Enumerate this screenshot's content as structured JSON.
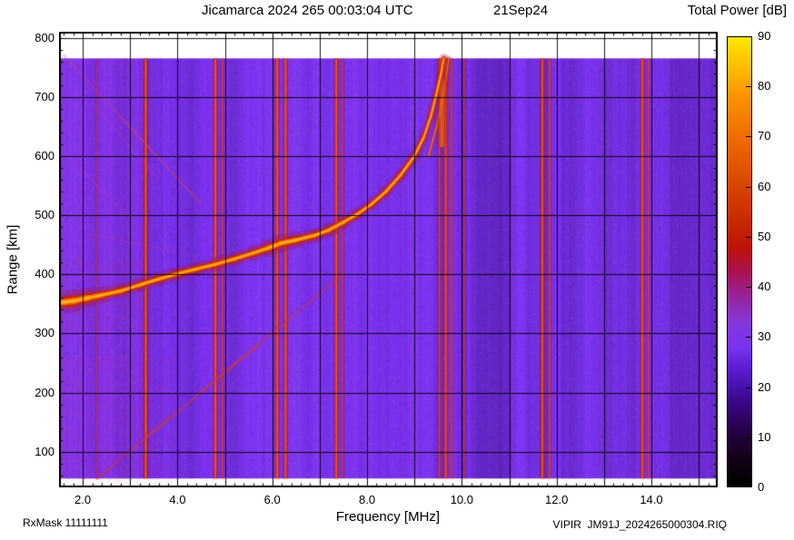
{
  "header": {
    "title": "Jicamarca 2024 265 00:03:04 UTC",
    "date": "21Sep24",
    "colorbar_title": "Total Power [dB]"
  },
  "footer": {
    "rxmask": "RxMask 11111111",
    "xlabel": "Frequency [MHz]",
    "filename": "VIPIR  JM91J_2024265000304.RIQ"
  },
  "chart_data": {
    "type": "heatmap",
    "title": "Jicamarca 2024 265 00:03:04 UTC 21Sep24 — ionogram",
    "xlabel": "Frequency [MHz]",
    "ylabel": "Range [km]",
    "xlim": [
      1.5,
      15.4
    ],
    "ylim": [
      40,
      810
    ],
    "grid": true,
    "x_ticks": [
      {
        "v": 2,
        "label": "2.0"
      },
      {
        "v": 4,
        "label": "4.0"
      },
      {
        "v": 6,
        "label": "6.0"
      },
      {
        "v": 8,
        "label": "8.0"
      },
      {
        "v": 10,
        "label": "10.0"
      },
      {
        "v": 12,
        "label": "12.0"
      },
      {
        "v": 14,
        "label": "14.0"
      }
    ],
    "y_ticks": [
      {
        "v": 100,
        "label": "100"
      },
      {
        "v": 200,
        "label": "200"
      },
      {
        "v": 300,
        "label": "300"
      },
      {
        "v": 400,
        "label": "400"
      },
      {
        "v": 500,
        "label": "500"
      },
      {
        "v": 600,
        "label": "600"
      },
      {
        "v": 700,
        "label": "700"
      },
      {
        "v": 800,
        "label": "800"
      }
    ],
    "colorbar": {
      "title": "Total Power [dB]",
      "min": 0,
      "max": 90,
      "ticks": [
        0,
        10,
        20,
        30,
        40,
        50,
        60,
        70,
        80,
        90
      ],
      "stops": [
        {
          "v": 0,
          "c": "#000000"
        },
        {
          "v": 6,
          "c": "#140018"
        },
        {
          "v": 12,
          "c": "#29004e"
        },
        {
          "v": 18,
          "c": "#3d0a96"
        },
        {
          "v": 24,
          "c": "#5c1fd6"
        },
        {
          "v": 28,
          "c": "#7a33f0"
        },
        {
          "v": 33,
          "c": "#8537d8"
        },
        {
          "v": 38,
          "c": "#96249c"
        },
        {
          "v": 43,
          "c": "#ab1150"
        },
        {
          "v": 48,
          "c": "#bd1305"
        },
        {
          "v": 55,
          "c": "#cc3000"
        },
        {
          "v": 62,
          "c": "#dc4c00"
        },
        {
          "v": 70,
          "c": "#ef6c00"
        },
        {
          "v": 78,
          "c": "#fb9200"
        },
        {
          "v": 84,
          "c": "#ffbc00"
        },
        {
          "v": 90,
          "c": "#ffe800"
        }
      ]
    },
    "base_color": "#7c32ee",
    "background_db": 27,
    "data_range_km": [
      55,
      765
    ],
    "critical_frequency_mhz": 9.6,
    "min_virtual_height_km": 352,
    "rfi_lines": [
      {
        "f": 2.3,
        "w": 2,
        "i": 0.25
      },
      {
        "f": 3.33,
        "w": 3,
        "i": 0.95
      },
      {
        "f": 4.8,
        "w": 3,
        "i": 0.95
      },
      {
        "f": 4.95,
        "w": 2,
        "i": 0.6
      },
      {
        "f": 6.1,
        "w": 3,
        "i": 0.95
      },
      {
        "f": 6.28,
        "w": 3,
        "i": 0.88
      },
      {
        "f": 7.35,
        "w": 3,
        "i": 0.95
      },
      {
        "f": 7.48,
        "w": 2,
        "i": 0.5
      },
      {
        "f": 9.53,
        "w": 2,
        "i": 0.7
      },
      {
        "f": 9.66,
        "w": 3,
        "i": 0.8
      },
      {
        "f": 9.78,
        "w": 2,
        "i": 0.6
      },
      {
        "f": 10.05,
        "w": 2,
        "i": 0.4
      },
      {
        "f": 11.7,
        "w": 3,
        "i": 0.9
      },
      {
        "f": 11.85,
        "w": 2,
        "i": 0.7
      },
      {
        "f": 13.81,
        "w": 3,
        "i": 0.9
      },
      {
        "f": 13.94,
        "w": 2,
        "i": 0.6
      }
    ],
    "dark_bands": [
      {
        "f1": 10.3,
        "f2": 11.0,
        "a": 0.1
      },
      {
        "f1": 12.1,
        "f2": 12.6,
        "a": 0.07
      },
      {
        "f1": 14.4,
        "f2": 15.4,
        "a": 0.08
      }
    ],
    "echo_trace": [
      [
        1.5,
        352,
        10
      ],
      [
        1.8,
        355,
        10
      ],
      [
        2.1,
        360,
        8
      ],
      [
        2.4,
        365,
        7
      ],
      [
        2.8,
        372,
        6
      ],
      [
        3.2,
        382,
        6
      ],
      [
        3.6,
        392,
        6
      ],
      [
        4.0,
        401,
        6
      ],
      [
        4.4,
        409,
        6
      ],
      [
        4.8,
        417,
        6
      ],
      [
        5.2,
        426,
        6
      ],
      [
        5.6,
        436,
        6
      ],
      [
        5.9,
        444,
        7
      ],
      [
        6.2,
        453,
        8
      ],
      [
        6.5,
        458,
        7
      ],
      [
        6.9,
        466,
        6
      ],
      [
        7.2,
        475,
        6
      ],
      [
        7.5,
        488,
        6
      ],
      [
        7.8,
        502,
        5
      ],
      [
        8.1,
        519,
        5
      ],
      [
        8.4,
        540,
        5
      ],
      [
        8.7,
        567,
        5
      ],
      [
        9.0,
        600,
        5
      ],
      [
        9.2,
        632,
        4
      ],
      [
        9.35,
        668,
        4
      ],
      [
        9.45,
        700,
        4
      ],
      [
        9.55,
        735,
        4
      ],
      [
        9.62,
        765,
        4
      ]
    ],
    "x_branch": [
      [
        9.3,
        600,
        3
      ],
      [
        9.5,
        660,
        3
      ],
      [
        9.65,
        720,
        3
      ],
      [
        9.72,
        765,
        3
      ]
    ],
    "asymptote": {
      "f": 9.58,
      "km_bottom": 615,
      "km_top": 765
    },
    "oblique_trace": [
      [
        2.3,
        55
      ],
      [
        2.7,
        82
      ],
      [
        3.3,
        122
      ],
      [
        3.9,
        161
      ],
      [
        4.5,
        201
      ],
      [
        5.1,
        241
      ],
      [
        5.7,
        281
      ],
      [
        6.3,
        321
      ],
      [
        6.9,
        361
      ],
      [
        7.5,
        401
      ]
    ],
    "descending_trace": [
      [
        1.6,
        770
      ],
      [
        2.2,
        718
      ],
      [
        2.8,
        666
      ],
      [
        3.4,
        614
      ],
      [
        4.0,
        562
      ],
      [
        4.5,
        519
      ]
    ],
    "faint_streaks": [
      [
        [
          2.2,
          690
        ],
        [
          3.6,
          560
        ]
      ],
      [
        [
          1.7,
          600
        ],
        [
          2.9,
          500
        ]
      ],
      [
        [
          2.1,
          470
        ],
        [
          4.4,
          430
        ]
      ]
    ]
  }
}
